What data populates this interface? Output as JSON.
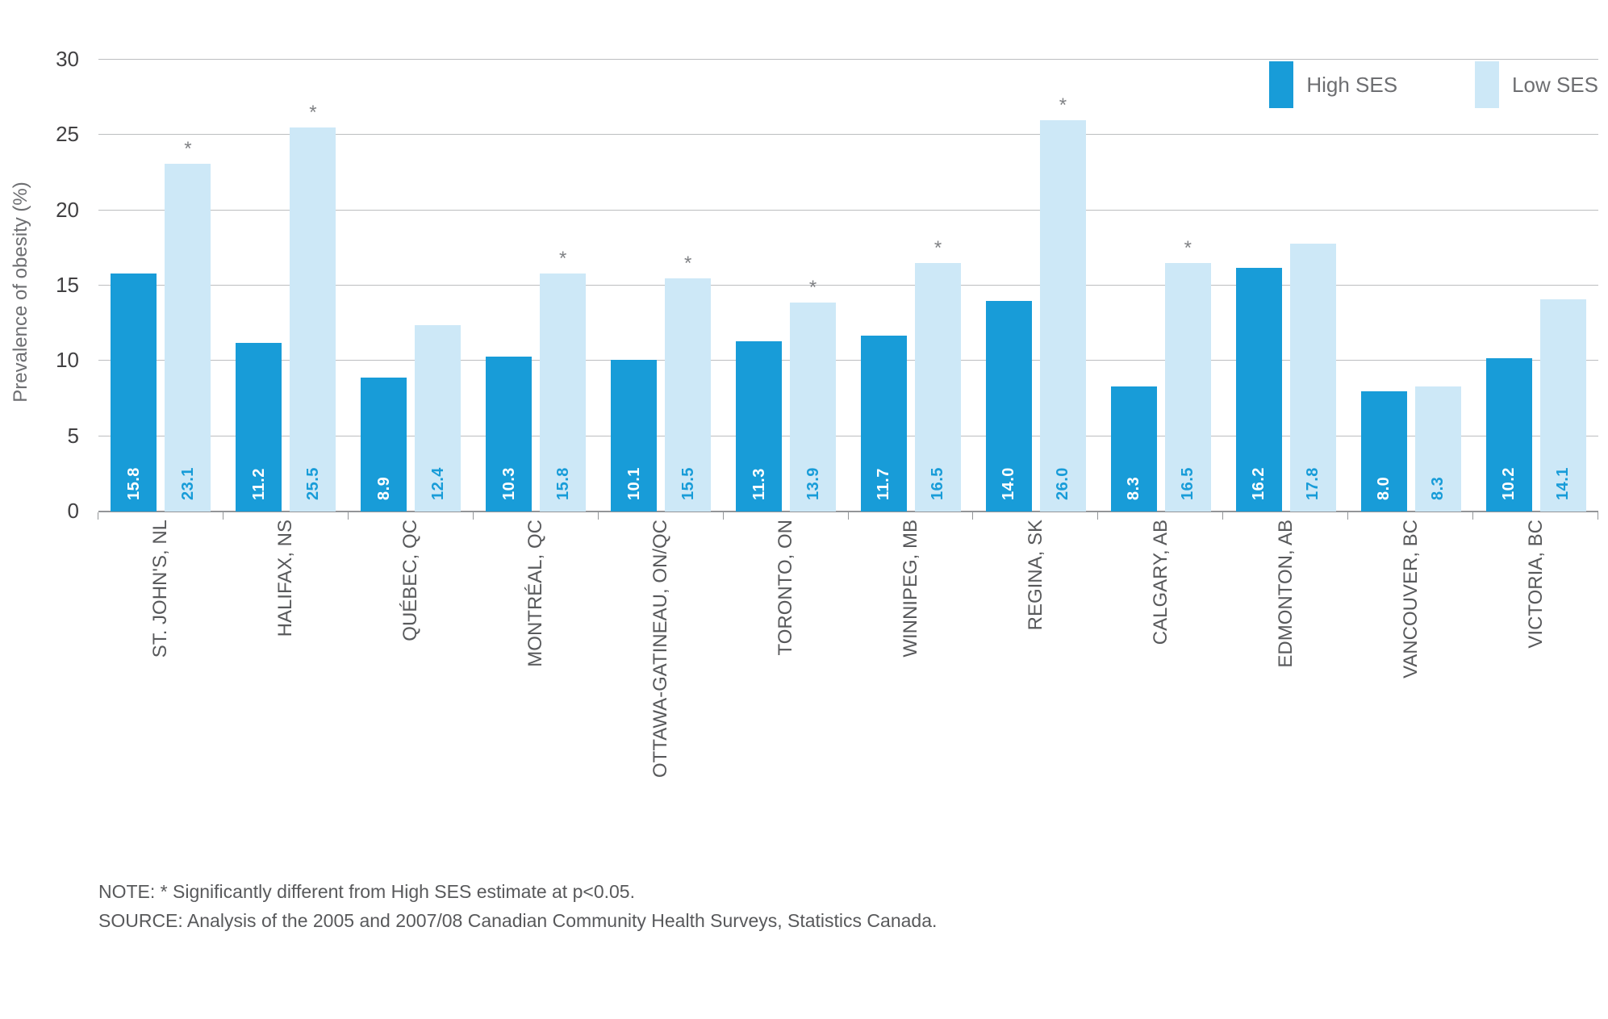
{
  "chart_data": {
    "type": "bar",
    "title": "",
    "ylabel": "Prevalence of obesity (%)",
    "ylim": [
      0,
      30
    ],
    "yticks": [
      0,
      5,
      10,
      15,
      20,
      25,
      30
    ],
    "legend": [
      "High SES",
      "Low SES"
    ],
    "legend_position": "top-right",
    "grid": "horizontal",
    "colors": {
      "high_ses": "#189cd8",
      "low_ses": "#cde8f7"
    },
    "categories": [
      "ST. JOHN'S, NL",
      "HALIFAX, NS",
      "QUÉBEC, QC",
      "MONTRÉAL, QC",
      "OTTAWA-GATINEAU, ON/QC",
      "TORONTO, ON",
      "WINNIPEG, MB",
      "REGINA, SK",
      "CALGARY, AB",
      "EDMONTON, AB",
      "VANCOUVER, BC",
      "VICTORIA, BC"
    ],
    "series": [
      {
        "name": "High SES",
        "values": [
          15.8,
          11.2,
          8.9,
          10.3,
          10.1,
          11.3,
          11.7,
          14.0,
          8.3,
          16.2,
          8.0,
          10.2
        ]
      },
      {
        "name": "Low SES",
        "values": [
          23.1,
          25.5,
          12.4,
          15.8,
          15.5,
          13.9,
          16.5,
          26.0,
          16.5,
          17.8,
          8.3,
          14.1
        ]
      }
    ],
    "significance_marker": "*",
    "significant_low_ses": [
      true,
      true,
      false,
      true,
      true,
      true,
      true,
      true,
      true,
      false,
      false,
      false
    ],
    "notes": [
      "NOTE: * Significantly different from High SES estimate at p<0.05.",
      "SOURCE: Analysis of the 2005 and 2007/08 Canadian Community Health Surveys, Statistics Canada."
    ]
  }
}
